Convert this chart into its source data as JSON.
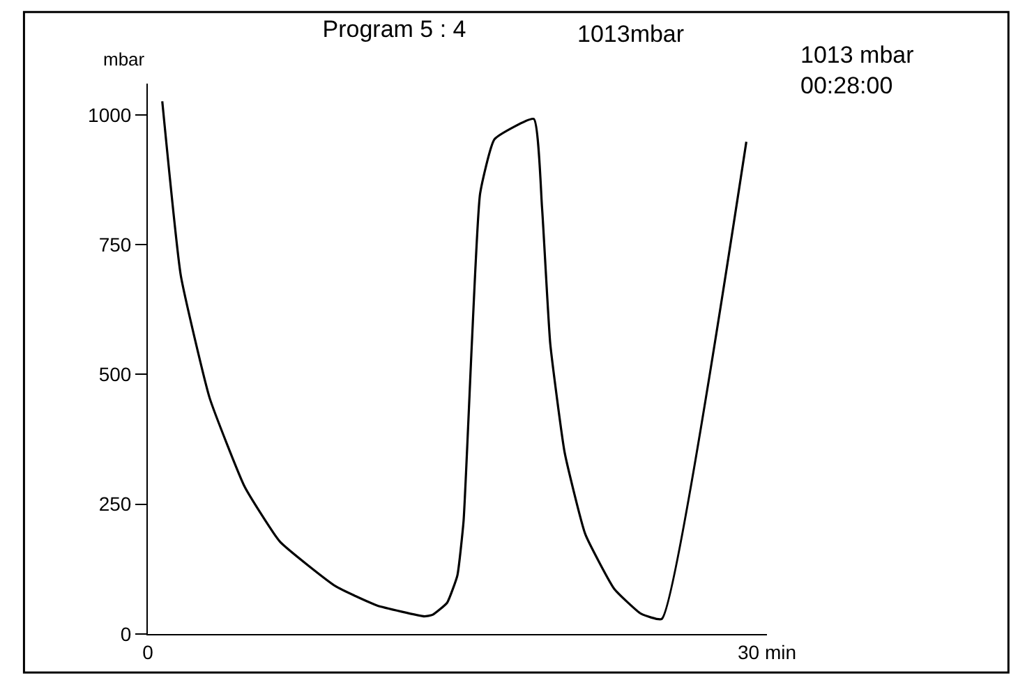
{
  "chart_data": {
    "type": "line",
    "title": "Program 5 : 4",
    "ylabel": "mbar",
    "annotations": [
      "1013mbar",
      "1013 mbar\n00:28:00"
    ],
    "x": [
      0.7,
      1.6,
      3.0,
      4.7,
      6.4,
      9.1,
      11.1,
      13.4,
      13.8,
      14.5,
      15.0,
      15.3,
      15.7,
      16.1,
      16.8,
      18.7,
      19.1,
      19.5,
      20.2,
      21.2,
      22.6,
      23.9,
      24.9,
      29.0
    ],
    "series": [
      {
        "color": "#000000",
        "values": [
          1026,
          690,
          454,
          283,
          178,
          92,
          55,
          34,
          37,
          60,
          113,
          218,
          559,
          848,
          953,
          992,
          822,
          559,
          349,
          192,
          87,
          39,
          29,
          948
        ]
      }
    ],
    "xlim": [
      0,
      30
    ],
    "xticks": [
      0,
      {
        "value": 30,
        "label": "30 min"
      }
    ],
    "ylim": [
      0,
      1060
    ],
    "yticks": [
      0,
      250,
      500,
      750,
      1000
    ],
    "legend": false,
    "marker": "none",
    "line_style": "solid"
  }
}
